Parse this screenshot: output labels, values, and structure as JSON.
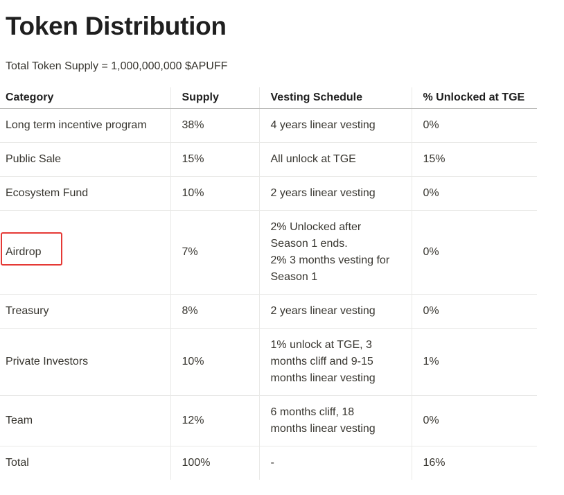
{
  "heading": {
    "title": "Token Distribution",
    "supply_line": "Total Token Supply = 1,000,000,000 $APUFF"
  },
  "table": {
    "headers": [
      "Category",
      "Supply",
      "Vesting Schedule",
      "% Unlocked at TGE"
    ],
    "rows": [
      {
        "category": "Long term incentive program",
        "supply": "38%",
        "vesting": [
          "4 years linear vesting"
        ],
        "unlocked": "0%"
      },
      {
        "category": "Public Sale",
        "supply": "15%",
        "vesting": [
          "All unlock at TGE"
        ],
        "unlocked": "15%"
      },
      {
        "category": "Ecosystem Fund",
        "supply": "10%",
        "vesting": [
          "2 years linear vesting"
        ],
        "unlocked": "0%"
      },
      {
        "category": "Airdrop",
        "supply": "7%",
        "vesting": [
          "2% Unlocked after",
          "Season 1 ends.",
          "2% 3 months vesting for",
          "Season 1"
        ],
        "unlocked": "0%"
      },
      {
        "category": "Treasury",
        "supply": "8%",
        "vesting": [
          "2 years linear vesting"
        ],
        "unlocked": "0%"
      },
      {
        "category": "Private Investors",
        "supply": "10%",
        "vesting": [
          "1% unlock at TGE, 3",
          "months cliff and 9-15",
          "months linear vesting"
        ],
        "unlocked": "1%"
      },
      {
        "category": "Team",
        "supply": "12%",
        "vesting": [
          "6 months cliff, 18",
          "months linear vesting"
        ],
        "unlocked": "0%"
      },
      {
        "category": "Total",
        "supply": "100%",
        "vesting": [
          "-"
        ],
        "unlocked": "16%"
      }
    ]
  },
  "annotation": {
    "highlight_color": "#e53935",
    "highlighted_cell": "Airdrop"
  }
}
